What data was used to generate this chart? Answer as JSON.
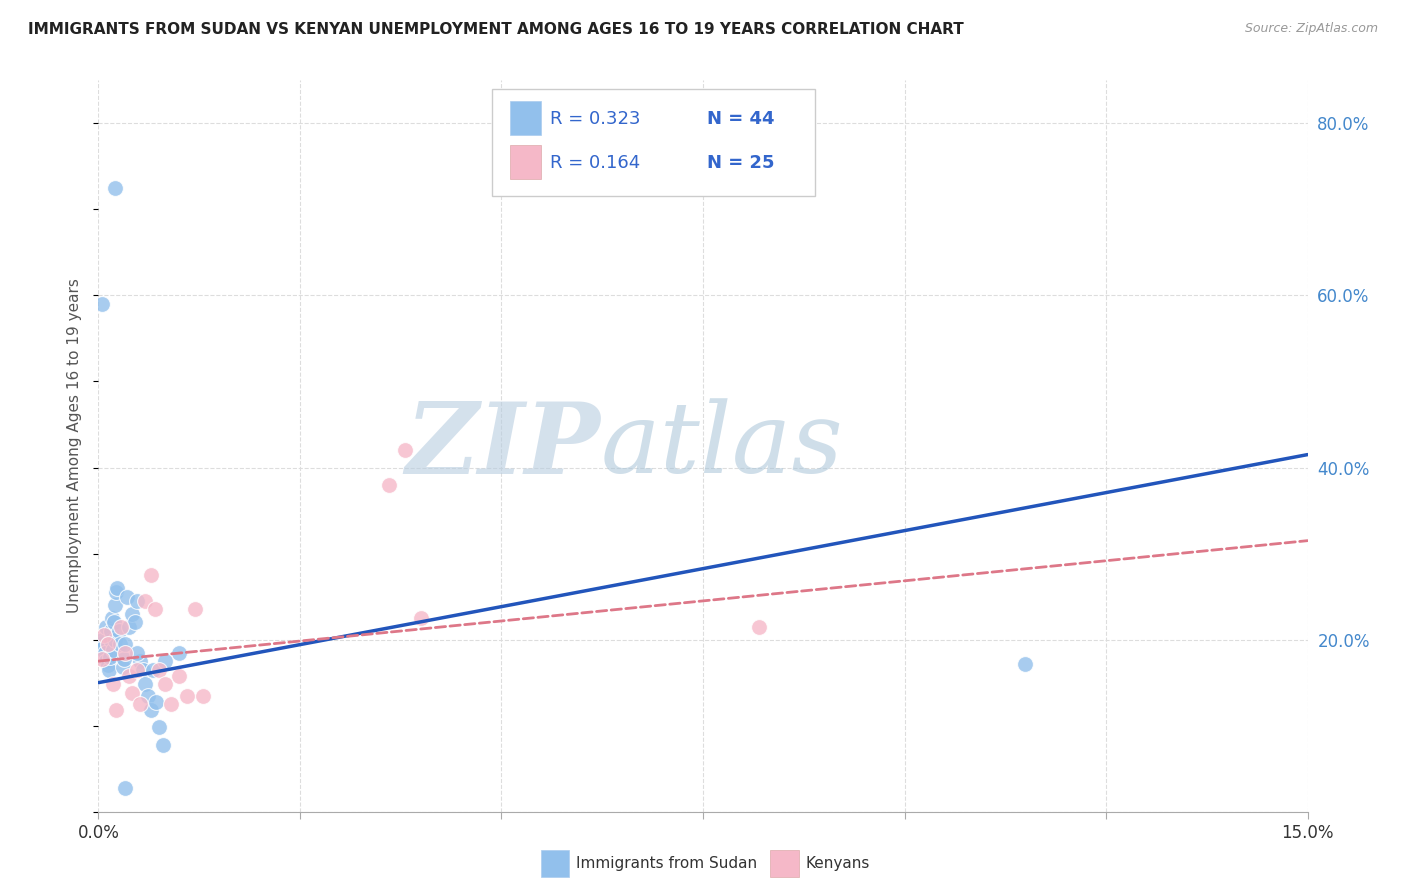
{
  "title": "IMMIGRANTS FROM SUDAN VS KENYAN UNEMPLOYMENT AMONG AGES 16 TO 19 YEARS CORRELATION CHART",
  "source": "Source: ZipAtlas.com",
  "ylabel": "Unemployment Among Ages 16 to 19 years",
  "xlim": [
    0.0,
    0.15
  ],
  "ylim": [
    0.0,
    0.85
  ],
  "x_ticks": [
    0.0,
    0.025,
    0.05,
    0.075,
    0.1,
    0.125,
    0.15
  ],
  "x_tick_labels": [
    "0.0%",
    "",
    "",
    "",
    "",
    "",
    "15.0%"
  ],
  "y_ticks_right": [
    0.2,
    0.4,
    0.6,
    0.8
  ],
  "y_tick_labels_right": [
    "20.0%",
    "40.0%",
    "60.0%",
    "80.0%"
  ],
  "blue_color": "#92C0EC",
  "pink_color": "#F5B8C8",
  "blue_line_color": "#2255BB",
  "pink_line_color": "#DD7788",
  "legend_r1": "R = 0.323",
  "legend_n1": "N = 44",
  "legend_r2": "R = 0.164",
  "legend_n2": "N = 25",
  "sudan_x": [
    0.0003,
    0.0005,
    0.0006,
    0.0008,
    0.001,
    0.001,
    0.0012,
    0.0013,
    0.0014,
    0.0015,
    0.0016,
    0.0017,
    0.0018,
    0.0019,
    0.002,
    0.0021,
    0.0022,
    0.0023,
    0.0025,
    0.0027,
    0.003,
    0.0032,
    0.0033,
    0.0035,
    0.0038,
    0.0042,
    0.0045,
    0.0048,
    0.0052,
    0.0055,
    0.0058,
    0.0062,
    0.0065,
    0.0068,
    0.0072,
    0.0075,
    0.008,
    0.01,
    0.0048,
    0.0082,
    0.0005,
    0.002,
    0.0033,
    0.115
  ],
  "sudan_y": [
    0.195,
    0.2,
    0.19,
    0.185,
    0.175,
    0.215,
    0.17,
    0.165,
    0.18,
    0.2,
    0.21,
    0.225,
    0.188,
    0.22,
    0.2,
    0.24,
    0.255,
    0.26,
    0.21,
    0.195,
    0.168,
    0.178,
    0.195,
    0.25,
    0.215,
    0.23,
    0.22,
    0.245,
    0.175,
    0.165,
    0.148,
    0.135,
    0.118,
    0.165,
    0.128,
    0.098,
    0.078,
    0.185,
    0.185,
    0.175,
    0.59,
    0.725,
    0.028,
    0.172
  ],
  "kenyan_x": [
    0.0004,
    0.0007,
    0.0012,
    0.0018,
    0.0022,
    0.0028,
    0.0033,
    0.0038,
    0.0042,
    0.0048,
    0.0052,
    0.0058,
    0.0065,
    0.007,
    0.0075,
    0.0082,
    0.009,
    0.01,
    0.011,
    0.012,
    0.013,
    0.036,
    0.038,
    0.04,
    0.082
  ],
  "kenyan_y": [
    0.178,
    0.205,
    0.195,
    0.148,
    0.118,
    0.215,
    0.185,
    0.158,
    0.138,
    0.165,
    0.125,
    0.245,
    0.275,
    0.235,
    0.165,
    0.148,
    0.125,
    0.158,
    0.135,
    0.235,
    0.135,
    0.38,
    0.42,
    0.225,
    0.215
  ],
  "watermark_zip": "ZIP",
  "watermark_atlas": "atlas",
  "bg_color": "#FFFFFF",
  "grid_color": "#DDDDDD",
  "blue_line_x0": 0.0,
  "blue_line_y0": 0.15,
  "blue_line_x1": 0.15,
  "blue_line_y1": 0.415,
  "pink_line_x0": 0.0,
  "pink_line_y0": 0.175,
  "pink_line_x1": 0.15,
  "pink_line_y1": 0.315
}
